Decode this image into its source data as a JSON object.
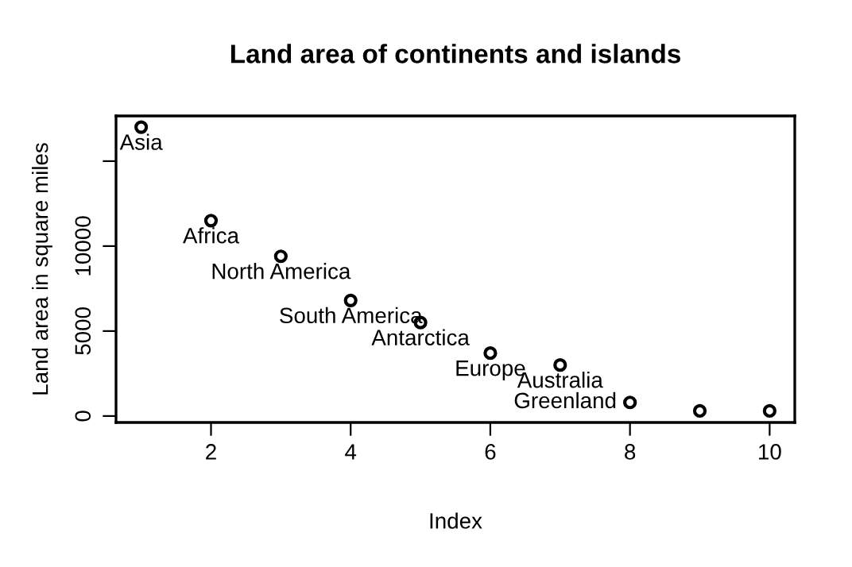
{
  "chart_data": {
    "type": "scatter",
    "title": "Land area of continents and islands",
    "xlabel": "Index",
    "ylabel": "Land area in square miles",
    "x": [
      1,
      2,
      3,
      4,
      5,
      6,
      7,
      8,
      9,
      10
    ],
    "values": [
      17000,
      11500,
      9400,
      6800,
      5500,
      3700,
      3000,
      800,
      300,
      300
    ],
    "color": "#000000",
    "marker": "circle",
    "grid": false,
    "xlim": [
      0.64,
      10.36
    ],
    "xticks": [
      2,
      4,
      6,
      8,
      10
    ],
    "ylim": [
      -380,
      17660
    ],
    "yticks": [
      0,
      5000,
      10000,
      {
        "value": 15000,
        "label": null
      }
    ],
    "annotations": [
      {
        "text": "Asia",
        "x": 1,
        "y": 17000
      },
      {
        "text": "Africa",
        "x": 2,
        "y": 11500
      },
      {
        "text": "North America",
        "x": 3,
        "y": 9400
      },
      {
        "text": "South America",
        "x": 4,
        "y": 6800
      },
      {
        "text": "Antarctica",
        "x": 5,
        "y": 5500
      },
      {
        "text": "Europe",
        "x": 6,
        "y": 3700
      },
      {
        "text": "Australia",
        "x": 7,
        "y": 3000
      },
      {
        "text": "Greenland",
        "x": 8,
        "y": 800
      }
    ]
  }
}
